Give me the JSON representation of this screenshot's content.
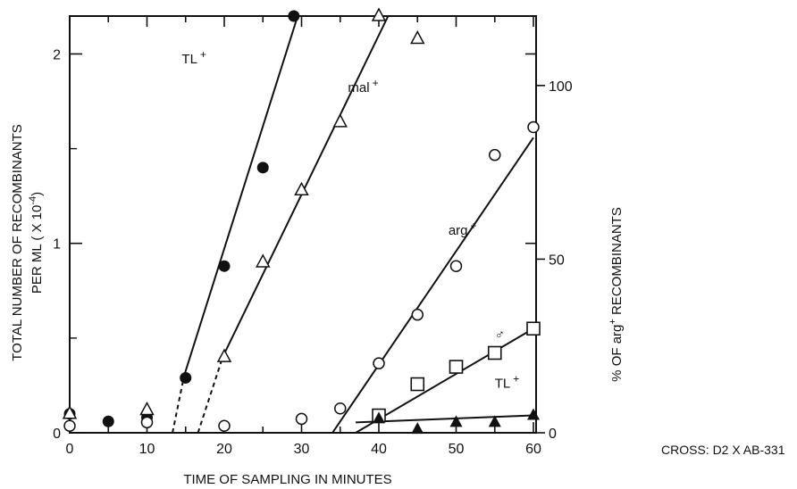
{
  "chart_data": {
    "type": "scatter",
    "xlabel": "TIME OF SAMPLING IN MINUTES",
    "ylabel_left_line1": "TOTAL NUMBER OF RECOMBINANTS",
    "ylabel_left_line2": "PER ML ( X 10",
    "ylabel_left_exp": "-4",
    "ylabel_left_close": ")",
    "ylabel_right_pre": "% OF arg",
    "ylabel_right_sup": "+",
    "ylabel_right_post": " RECOMBINANTS",
    "annotation": "CROSS: D2 X AB-331",
    "xlim": [
      0,
      60
    ],
    "ylim_left": [
      0,
      2.2
    ],
    "ylim_right": [
      0,
      120
    ],
    "x_ticks": [
      0,
      10,
      20,
      30,
      40,
      50,
      60
    ],
    "x_tick_labels": [
      "0",
      "10",
      "20",
      "30",
      "40",
      "50",
      "60"
    ],
    "y_left_ticks": [
      0,
      1,
      2
    ],
    "y_left_tick_labels": [
      "0",
      "1",
      "2"
    ],
    "y_right_ticks": [
      0,
      50,
      100
    ],
    "y_right_tick_labels": [
      "0",
      "50",
      "100"
    ],
    "series": [
      {
        "name": "TL",
        "sup": "+",
        "axis": "left",
        "marker": "filled-circle",
        "points": [
          [
            0,
            0.1
          ],
          [
            5,
            0.06
          ],
          [
            10,
            0.08
          ],
          [
            15,
            0.29
          ],
          [
            20,
            0.88
          ],
          [
            25,
            1.4
          ],
          [
            29,
            2.2
          ]
        ],
        "fit": [
          [
            14.8,
            0.3
          ],
          [
            29.5,
            2.2
          ]
        ],
        "extrap": [
          [
            13.3,
            0
          ],
          [
            14.8,
            0.3
          ]
        ],
        "label_pos": [
          14.5,
          1.95
        ]
      },
      {
        "name": "mal",
        "sup": "+",
        "axis": "left",
        "marker": "open-triangle",
        "points": [
          [
            0,
            0.1
          ],
          [
            10,
            0.12
          ],
          [
            20,
            0.4
          ],
          [
            25,
            0.9
          ],
          [
            30,
            1.28
          ],
          [
            35,
            1.64
          ],
          [
            40,
            2.2
          ],
          [
            45,
            2.08
          ]
        ],
        "fit": [
          [
            19.8,
            0.4
          ],
          [
            41.2,
            2.2
          ]
        ],
        "extrap": [
          [
            16.6,
            0
          ],
          [
            19.8,
            0.4
          ]
        ],
        "label_pos": [
          36,
          1.8
        ]
      },
      {
        "name": "arg",
        "sup": "+",
        "axis": "right",
        "marker": "open-circle",
        "points": [
          [
            0,
            2
          ],
          [
            10,
            3
          ],
          [
            20,
            2
          ],
          [
            30,
            4
          ],
          [
            35,
            7
          ],
          [
            40,
            20
          ],
          [
            45,
            34
          ],
          [
            50,
            48
          ],
          [
            55,
            80
          ],
          [
            60,
            88
          ]
        ],
        "fit": [
          [
            34,
            0
          ],
          [
            60,
            85
          ]
        ],
        "extrap": [],
        "label_pos": [
          49,
          57
        ]
      },
      {
        "name": "♂",
        "sup": "",
        "axis": "right",
        "marker": "open-square",
        "points": [
          [
            40,
            5
          ],
          [
            45,
            14
          ],
          [
            50,
            19
          ],
          [
            55,
            23
          ],
          [
            60,
            30
          ]
        ],
        "fit": [
          [
            37,
            0
          ],
          [
            60,
            30
          ]
        ],
        "extrap": [],
        "label_pos": [
          55,
          27
        ]
      },
      {
        "name": "TL",
        "sup": "+",
        "axis": "right",
        "marker": "filled-triangle",
        "points": [
          [
            40,
            4
          ],
          [
            45,
            1
          ],
          [
            50,
            3
          ],
          [
            55,
            3
          ],
          [
            60,
            5
          ]
        ],
        "fit": [
          [
            37,
            3
          ],
          [
            60,
            5
          ]
        ],
        "extrap": [],
        "label_pos": [
          55,
          13
        ]
      }
    ]
  }
}
